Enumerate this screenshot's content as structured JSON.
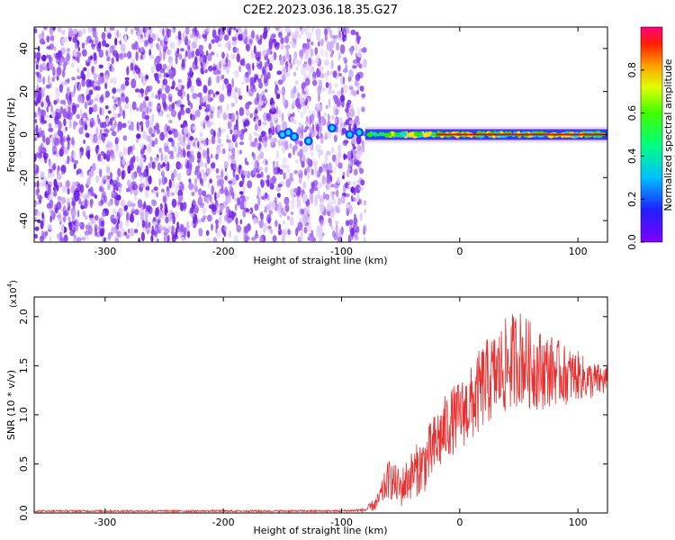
{
  "title": "C2E2.2023.036.18.35.G27",
  "chart_data": [
    {
      "type": "heatmap",
      "xlabel": "Height of straight line (km)",
      "ylabel": "Frequency (Hz)",
      "xlim": [
        -360,
        125
      ],
      "ylim": [
        -50,
        50
      ],
      "x_ticks": [
        -300,
        -200,
        -100,
        0,
        100
      ],
      "y_ticks": [
        -40,
        -20,
        0,
        20,
        40
      ],
      "x_tick_labels": [
        "-300",
        "-200",
        "-100",
        "0",
        "100"
      ],
      "y_tick_labels": [
        "-40",
        "-20",
        "0",
        "20",
        "40"
      ],
      "noise_region_x": [
        -360,
        -80
      ],
      "signal_line_frequency_hz": 0,
      "colorbar": {
        "label": "Normalized spectral amplitude",
        "range": [
          0,
          1
        ],
        "ticks": [
          0.0,
          0.2,
          0.4,
          0.6,
          0.8
        ],
        "tick_labels": [
          "0.0",
          "0.2",
          "0.4",
          "0.6",
          "0.8"
        ],
        "colormap": "rainbow"
      },
      "colors": {
        "noise": "#7a2be8",
        "line_core": "#e60000",
        "line_mid": "#36e000",
        "line_outer": "#0050ff"
      }
    },
    {
      "type": "line",
      "xlabel": "Height of straight line (km)",
      "ylabel": "SNR (10 * v/v)",
      "y_multiplier": "(x10",
      "y_multiplier_exp": "4",
      "xlim": [
        -360,
        125
      ],
      "ylim": [
        0,
        2.2
      ],
      "x_ticks": [
        -300,
        -200,
        -100,
        0,
        100
      ],
      "y_ticks": [
        0.0,
        0.5,
        1.0,
        1.5,
        2.0
      ],
      "x_tick_labels": [
        "-300",
        "-200",
        "-100",
        "0",
        "100"
      ],
      "y_tick_labels": [
        "0.0",
        "0.5",
        "1.0",
        "1.5",
        "2.0"
      ],
      "series": [
        {
          "name": "SNR",
          "color": "#e83030",
          "envelope_x": [
            -360,
            -100,
            -80,
            -70,
            -60,
            -50,
            -40,
            -30,
            -20,
            -10,
            0,
            10,
            20,
            30,
            40,
            50,
            60,
            70,
            80,
            90,
            100,
            110,
            125
          ],
          "envelope_mean": [
            0.02,
            0.02,
            0.03,
            0.1,
            0.35,
            0.25,
            0.4,
            0.5,
            0.7,
            0.9,
            1.0,
            1.1,
            1.3,
            1.4,
            1.5,
            1.6,
            1.5,
            1.45,
            1.45,
            1.4,
            1.4,
            1.35,
            1.35
          ],
          "envelope_amp": [
            0.01,
            0.01,
            0.02,
            0.08,
            0.2,
            0.2,
            0.25,
            0.3,
            0.35,
            0.35,
            0.35,
            0.4,
            0.45,
            0.45,
            0.5,
            0.5,
            0.45,
            0.4,
            0.35,
            0.3,
            0.25,
            0.2,
            0.15
          ]
        }
      ]
    }
  ]
}
